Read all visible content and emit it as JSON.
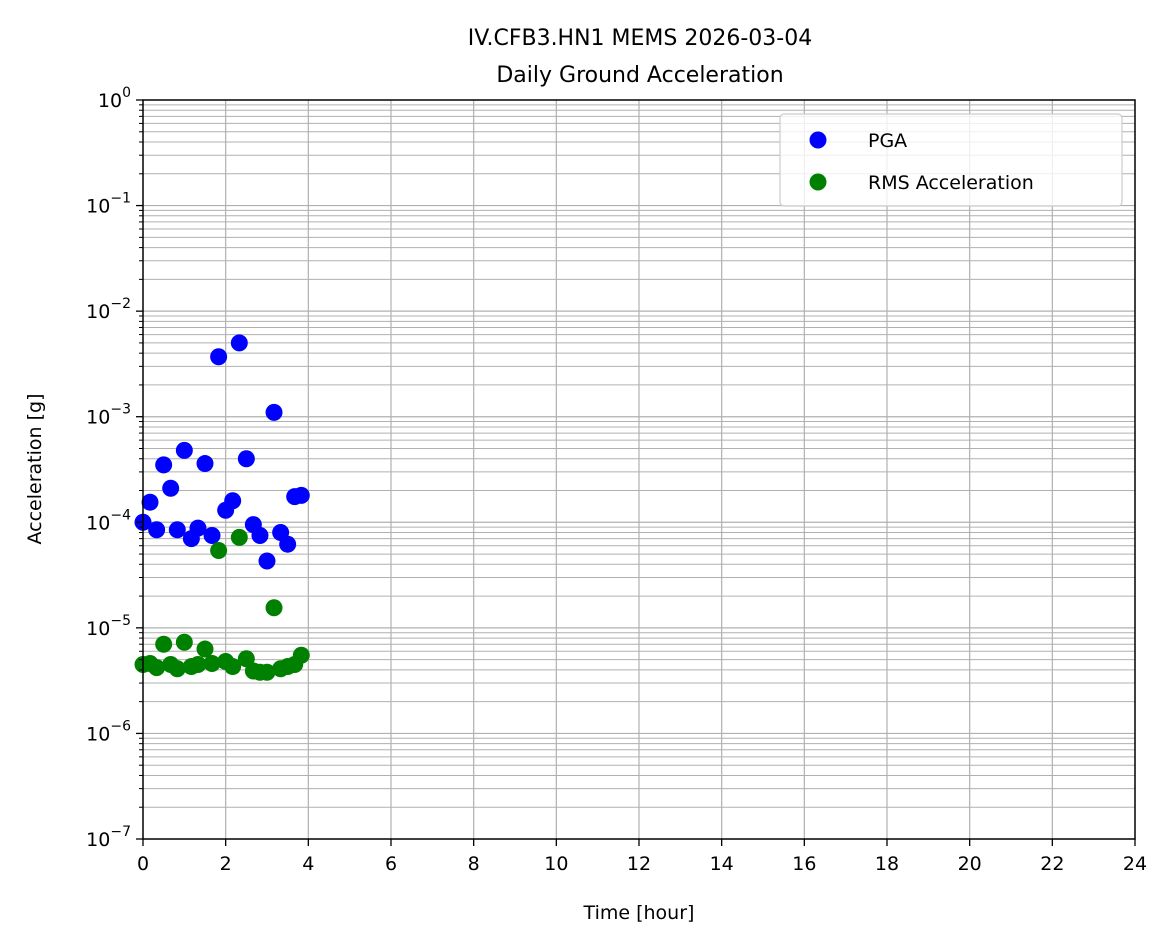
{
  "chart_data": {
    "type": "scatter",
    "title_line1": "IV.CFB3.HN1 MEMS 2026-03-04",
    "title_line2": "Daily Ground Acceleration",
    "xlabel": "Time [hour]",
    "ylabel": "Acceleration [g]",
    "xlim": [
      0,
      24
    ],
    "ylim": [
      1e-07,
      1
    ],
    "yscale": "log",
    "grid": true,
    "legend_placement": "top-right",
    "x_ticks": [
      0,
      2,
      4,
      6,
      8,
      10,
      12,
      14,
      16,
      18,
      20,
      22,
      24
    ],
    "y_ticks": [
      {
        "value": 1e-07,
        "base": "10",
        "exp": "−7"
      },
      {
        "value": 1e-06,
        "base": "10",
        "exp": "−6"
      },
      {
        "value": 1e-05,
        "base": "10",
        "exp": "−5"
      },
      {
        "value": 0.0001,
        "base": "10",
        "exp": "−4"
      },
      {
        "value": 0.001,
        "base": "10",
        "exp": "−3"
      },
      {
        "value": 0.01,
        "base": "10",
        "exp": "−2"
      },
      {
        "value": 0.1,
        "base": "10",
        "exp": "−1"
      },
      {
        "value": 1,
        "base": "10",
        "exp": "0"
      }
    ],
    "series": [
      {
        "name": "PGA",
        "color": "#0000ff",
        "x": [
          0.0,
          0.17,
          0.33,
          0.5,
          0.67,
          0.83,
          1.0,
          1.17,
          1.33,
          1.5,
          1.67,
          1.83,
          2.0,
          2.17,
          2.33,
          2.5,
          2.67,
          2.83,
          3.0,
          3.17,
          3.33,
          3.5,
          3.67,
          3.83
        ],
        "y": [
          0.0001,
          0.000155,
          8.5e-05,
          0.00035,
          0.00021,
          8.5e-05,
          0.00048,
          7e-05,
          8.8e-05,
          0.00036,
          7.5e-05,
          0.0037,
          0.00013,
          0.00016,
          0.005,
          0.0004,
          9.5e-05,
          7.5e-05,
          4.3e-05,
          0.0011,
          8e-05,
          6.2e-05,
          0.000175,
          0.00018
        ]
      },
      {
        "name": "RMS Acceleration",
        "color": "#008000",
        "x": [
          0.0,
          0.17,
          0.33,
          0.5,
          0.67,
          0.83,
          1.0,
          1.17,
          1.33,
          1.5,
          1.67,
          1.83,
          2.0,
          2.17,
          2.33,
          2.5,
          2.67,
          2.83,
          3.0,
          3.17,
          3.33,
          3.5,
          3.67,
          3.83
        ],
        "y": [
          4.5e-06,
          4.6e-06,
          4.2e-06,
          7e-06,
          4.5e-06,
          4.1e-06,
          7.3e-06,
          4.3e-06,
          4.5e-06,
          6.3e-06,
          4.6e-06,
          5.4e-05,
          4.8e-06,
          4.3e-06,
          7.2e-05,
          5.1e-06,
          3.9e-06,
          3.8e-06,
          3.8e-06,
          1.55e-05,
          4.1e-06,
          4.3e-06,
          4.5e-06,
          5.5e-06
        ]
      }
    ]
  }
}
